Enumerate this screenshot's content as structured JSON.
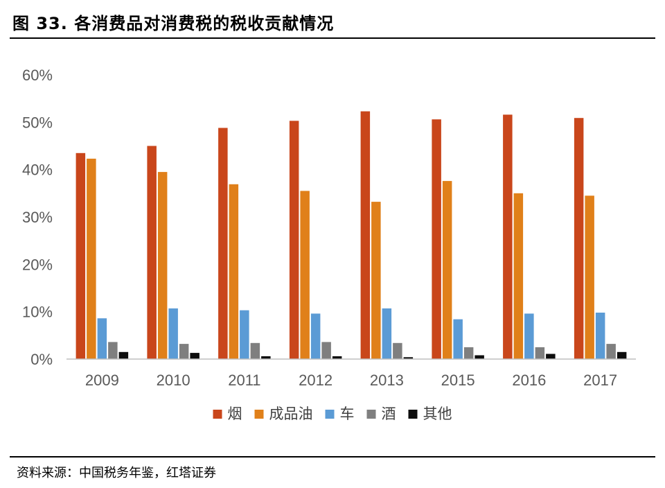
{
  "figure_title": "图 33. 各消费品对消费税的税收贡献情况",
  "source": "资料来源：中国税务年鉴，红塔证券",
  "chart_data": {
    "type": "bar",
    "title": "",
    "xlabel": "",
    "ylabel": "",
    "categories": [
      "2009",
      "2010",
      "2011",
      "2012",
      "2013",
      "2015",
      "2016",
      "2017"
    ],
    "series": [
      {
        "name": "烟",
        "color": "#C9461B",
        "values": [
          43.5,
          45.0,
          48.8,
          50.3,
          52.3,
          50.6,
          51.6,
          50.9
        ]
      },
      {
        "name": "成品油",
        "color": "#E0801A",
        "values": [
          42.3,
          39.5,
          36.9,
          35.5,
          33.2,
          37.6,
          35.0,
          34.5
        ]
      },
      {
        "name": "车",
        "color": "#5B9BD5",
        "values": [
          8.6,
          10.7,
          10.3,
          9.6,
          10.7,
          8.4,
          9.6,
          9.8
        ]
      },
      {
        "name": "酒",
        "color": "#7F7F7F",
        "values": [
          3.6,
          3.2,
          3.4,
          3.6,
          3.4,
          2.5,
          2.5,
          3.2
        ]
      },
      {
        "name": "其他",
        "color": "#0D0D0D",
        "values": [
          1.5,
          1.3,
          0.6,
          0.6,
          0.4,
          0.8,
          1.1,
          1.5
        ]
      }
    ],
    "ylim": [
      0,
      60
    ],
    "yticks": [
      "0%",
      "10%",
      "20%",
      "30%",
      "40%",
      "50%",
      "60%"
    ],
    "grid": false,
    "legend_position": "bottom"
  }
}
